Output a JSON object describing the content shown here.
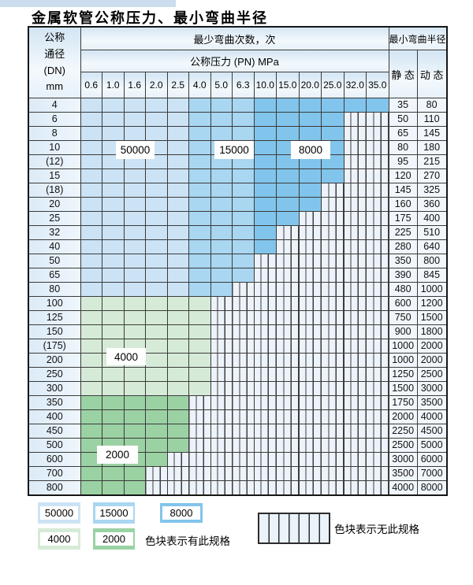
{
  "title": "金属软管公称压力、最小弯曲半径",
  "table": {
    "dn_header": {
      "line1": "公称",
      "line2": "通径",
      "line3": "(DN)",
      "line4": "mm"
    },
    "bend_cycles_header": "最少弯曲次数，次",
    "pressure_header": "公称压力 (PN) MPa",
    "radius_header": "最小弯曲半径",
    "static_header": "静 态",
    "dynamic_header": "动 态",
    "pressures": [
      "0.6",
      "1.0",
      "1.6",
      "2.0",
      "2.5",
      "4.0",
      "5.0",
      "6.3",
      "10.0",
      "15.0",
      "20.0",
      "25.0",
      "32.0",
      "35.0"
    ],
    "rows": [
      {
        "dn": "4",
        "colored": 14,
        "palette": "blue",
        "static": "35",
        "dynamic": "80"
      },
      {
        "dn": "6",
        "colored": 12,
        "palette": "blue",
        "static": "50",
        "dynamic": "110"
      },
      {
        "dn": "8",
        "colored": 12,
        "palette": "blue",
        "static": "65",
        "dynamic": "145"
      },
      {
        "dn": "10",
        "colored": 12,
        "palette": "blue",
        "static": "80",
        "dynamic": "180"
      },
      {
        "dn": "(12)",
        "colored": 12,
        "palette": "blue",
        "static": "95",
        "dynamic": "215"
      },
      {
        "dn": "15",
        "colored": 12,
        "palette": "blue",
        "static": "120",
        "dynamic": "270"
      },
      {
        "dn": "(18)",
        "colored": 11,
        "palette": "blue",
        "static": "145",
        "dynamic": "325"
      },
      {
        "dn": "20",
        "colored": 11,
        "palette": "blue",
        "static": "160",
        "dynamic": "360"
      },
      {
        "dn": "25",
        "colored": 10,
        "palette": "blue",
        "static": "175",
        "dynamic": "400"
      },
      {
        "dn": "32",
        "colored": 9,
        "palette": "blue",
        "static": "225",
        "dynamic": "510"
      },
      {
        "dn": "40",
        "colored": 9,
        "palette": "blue",
        "static": "280",
        "dynamic": "640"
      },
      {
        "dn": "50",
        "colored": 8,
        "palette": "blue",
        "static": "350",
        "dynamic": "800"
      },
      {
        "dn": "65",
        "colored": 8,
        "palette": "blue",
        "static": "390",
        "dynamic": "845"
      },
      {
        "dn": "80",
        "colored": 7,
        "palette": "blue",
        "static": "480",
        "dynamic": "1000"
      },
      {
        "dn": "100",
        "colored": 6,
        "palette": "green4000",
        "static": "600",
        "dynamic": "1200"
      },
      {
        "dn": "125",
        "colored": 6,
        "palette": "green4000",
        "static": "750",
        "dynamic": "1500"
      },
      {
        "dn": "150",
        "colored": 6,
        "palette": "green4000",
        "static": "900",
        "dynamic": "1800"
      },
      {
        "dn": "(175)",
        "colored": 6,
        "palette": "green4000",
        "static": "1000",
        "dynamic": "2000"
      },
      {
        "dn": "200",
        "colored": 6,
        "palette": "green4000",
        "static": "1000",
        "dynamic": "2000"
      },
      {
        "dn": "250",
        "colored": 6,
        "palette": "green4000",
        "static": "1250",
        "dynamic": "2500"
      },
      {
        "dn": "300",
        "colored": 6,
        "palette": "green4000",
        "static": "1500",
        "dynamic": "3000"
      },
      {
        "dn": "350",
        "colored": 5,
        "palette": "green2000",
        "static": "1750",
        "dynamic": "3500"
      },
      {
        "dn": "400",
        "colored": 5,
        "palette": "green2000",
        "static": "2000",
        "dynamic": "4000"
      },
      {
        "dn": "450",
        "colored": 5,
        "palette": "green2000",
        "static": "2250",
        "dynamic": "4500"
      },
      {
        "dn": "500",
        "colored": 5,
        "palette": "green2000",
        "static": "2500",
        "dynamic": "5000"
      },
      {
        "dn": "600",
        "colored": 4,
        "palette": "green2000",
        "static": "3000",
        "dynamic": "6000"
      },
      {
        "dn": "700",
        "colored": 3,
        "palette": "green2000",
        "static": "3500",
        "dynamic": "7000"
      },
      {
        "dn": "800",
        "colored": 3,
        "palette": "green2000",
        "static": "4000",
        "dynamic": "8000"
      }
    ]
  },
  "zones": [
    {
      "value": "50000",
      "color_key": "blue_50000"
    },
    {
      "value": "15000",
      "color_key": "blue_15000"
    },
    {
      "value": "8000",
      "color_key": "blue_8000"
    },
    {
      "value": "4000",
      "color_key": "green_4000"
    },
    {
      "value": "2000",
      "color_key": "green_2000"
    }
  ],
  "legend": {
    "has_spec_text": "色块表示有此规格",
    "no_spec_text": "色块表示无此规格"
  },
  "colors": {
    "blue_50000": "#cce3f5",
    "blue_15000": "#a9d6f1",
    "blue_8000": "#82c5ec",
    "green_4000": "#d6ebd7",
    "green_2000": "#9bd2a3",
    "hatch_bg": "#edf3fa",
    "top_strip": "#ccdded"
  }
}
